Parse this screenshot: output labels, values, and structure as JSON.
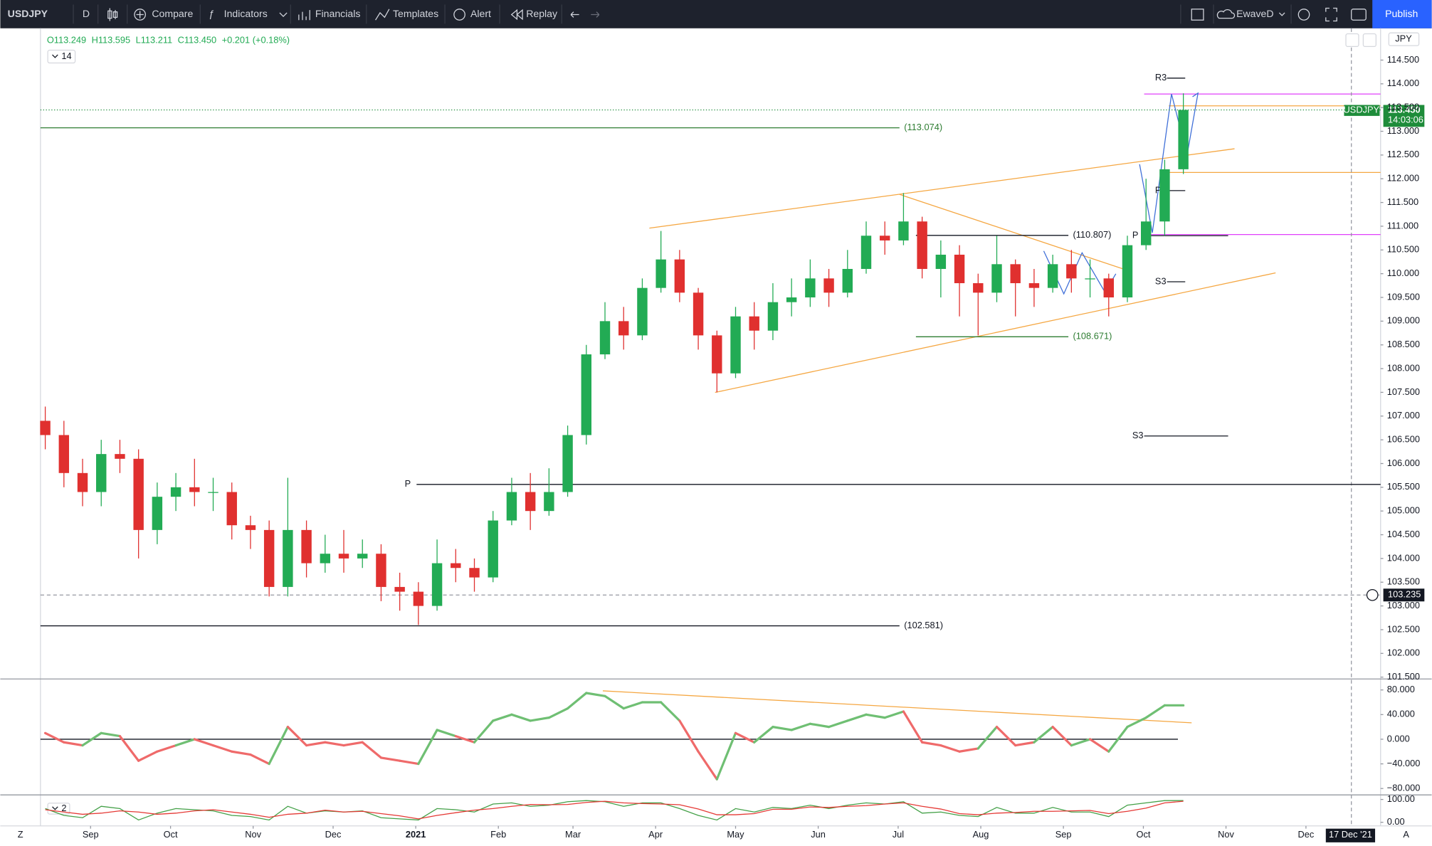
{
  "toolbar": {
    "symbol": "USDJPY",
    "interval": "D",
    "items": [
      "Compare",
      "Indicators",
      "Financials",
      "Templates",
      "Alert",
      "Replay"
    ],
    "layout_name": "EwaveD",
    "publish": "Publish"
  },
  "legend": {
    "ohlc": [
      "O113.249",
      "H113.595",
      "L113.211",
      "C113.450",
      "+0.201 (+0.18%)"
    ],
    "indicator_param": "14",
    "stoch_param": "2"
  },
  "price_tags": {
    "symbol": "USDJPY",
    "price": "113.450",
    "countdown": "14:03:06",
    "crosshair": "103.235",
    "currency": "JPY",
    "date": "17 Dec '21"
  },
  "axis_buttons": [
    "Z",
    "A"
  ],
  "chart_data": [
    {
      "type": "candlestick",
      "up_color": "#22ab54",
      "down_color": "#e0302f",
      "x": [
        14,
        21,
        28,
        35,
        42,
        49,
        56,
        63,
        70,
        77,
        84,
        91,
        98,
        105,
        112,
        119,
        126,
        133,
        140,
        147,
        154,
        161,
        168,
        175,
        182,
        189,
        196,
        203,
        210,
        217,
        224,
        231,
        238,
        245,
        252,
        259,
        266,
        273,
        280,
        287,
        294,
        301,
        308,
        315,
        322,
        329,
        336,
        343,
        350,
        357,
        364,
        371,
        378,
        385,
        392,
        399,
        406,
        413,
        420,
        427,
        434,
        441
      ],
      "open": [
        106.9,
        106.6,
        105.8,
        105.4,
        106.2,
        106.1,
        104.6,
        105.3,
        105.5,
        105.4,
        105.4,
        104.7,
        104.6,
        103.4,
        104.6,
        103.9,
        104.1,
        104.0,
        104.1,
        103.4,
        103.3,
        103.0,
        103.9,
        103.8,
        103.6,
        104.8,
        105.4,
        105.0,
        105.4,
        106.6,
        108.3,
        109.0,
        108.7,
        109.7,
        110.3,
        109.6,
        108.7,
        107.9,
        109.1,
        108.8,
        109.4,
        109.5,
        109.9,
        109.6,
        110.1,
        110.8,
        110.7,
        111.1,
        110.1,
        110.4,
        109.8,
        109.6,
        110.2,
        109.8,
        109.7,
        110.2,
        109.9,
        109.9,
        109.5,
        110.6,
        111.1,
        112.2
      ],
      "high": [
        107.2,
        106.9,
        106.1,
        106.5,
        106.5,
        106.3,
        105.6,
        105.8,
        106.1,
        105.7,
        105.6,
        104.9,
        104.8,
        105.7,
        104.8,
        104.5,
        104.6,
        104.4,
        104.3,
        103.7,
        103.5,
        104.4,
        104.2,
        104.0,
        105.0,
        105.7,
        105.8,
        105.9,
        106.8,
        108.5,
        109.4,
        109.3,
        109.9,
        110.9,
        110.5,
        109.7,
        108.8,
        109.3,
        109.4,
        109.8,
        109.9,
        110.3,
        110.1,
        110.5,
        111.1,
        111.1,
        111.7,
        111.2,
        110.7,
        110.6,
        110.0,
        110.8,
        110.3,
        110.1,
        110.4,
        110.5,
        110.3,
        110.0,
        110.8,
        112.0,
        112.4,
        113.8
      ],
      "low": [
        106.3,
        105.5,
        105.1,
        105.1,
        105.8,
        104.0,
        104.3,
        105.0,
        105.1,
        105.0,
        104.4,
        104.2,
        103.2,
        103.2,
        103.6,
        103.7,
        103.7,
        103.8,
        103.1,
        102.9,
        102.6,
        102.9,
        103.5,
        103.3,
        103.5,
        104.7,
        104.6,
        104.9,
        105.3,
        106.4,
        108.2,
        108.4,
        108.6,
        109.6,
        109.4,
        108.4,
        107.5,
        107.8,
        108.4,
        108.6,
        109.1,
        109.3,
        109.3,
        109.5,
        110.0,
        110.4,
        110.6,
        109.9,
        109.5,
        109.1,
        108.7,
        109.4,
        109.1,
        109.3,
        109.6,
        109.6,
        109.5,
        109.1,
        109.4,
        110.5,
        110.8,
        112.1
      ],
      "close": [
        106.6,
        105.8,
        105.4,
        106.2,
        106.1,
        104.6,
        105.3,
        105.5,
        105.4,
        105.4,
        104.7,
        104.6,
        103.4,
        104.6,
        103.9,
        104.1,
        104.0,
        104.1,
        103.4,
        103.3,
        103.0,
        103.9,
        103.8,
        103.6,
        104.8,
        105.4,
        105.0,
        105.4,
        106.6,
        108.3,
        109.0,
        108.7,
        109.7,
        110.3,
        109.6,
        108.7,
        107.9,
        109.1,
        108.8,
        109.4,
        109.5,
        109.9,
        109.6,
        110.1,
        110.8,
        110.7,
        111.1,
        110.1,
        110.4,
        109.8,
        109.6,
        110.2,
        109.8,
        109.7,
        110.2,
        109.9,
        109.9,
        109.5,
        110.6,
        111.1,
        112.2,
        113.45
      ],
      "xlim": [
        12.2,
        515
      ],
      "xticks": [
        {
          "value": 31,
          "label": "Sep"
        },
        {
          "value": 61,
          "label": "Oct"
        },
        {
          "value": 92,
          "label": "Nov"
        },
        {
          "value": 122,
          "label": "Dec"
        },
        {
          "value": 153,
          "label": "2021"
        },
        {
          "value": 184,
          "label": "Feb"
        },
        {
          "value": 212,
          "label": "Mar"
        },
        {
          "value": 243,
          "label": "Apr"
        },
        {
          "value": 273,
          "label": "May"
        },
        {
          "value": 304,
          "label": "Jun"
        },
        {
          "value": 334,
          "label": "Jul"
        },
        {
          "value": 365,
          "label": "Aug"
        },
        {
          "value": 396,
          "label": "Sep"
        },
        {
          "value": 426,
          "label": "Oct"
        },
        {
          "value": 457,
          "label": "Nov"
        },
        {
          "value": 487,
          "label": "Dec"
        }
      ],
      "ylim": [
        101.48,
        115.17
      ],
      "yticks": [
        {
          "value": 101.5,
          "label": "101.500"
        },
        {
          "value": 102,
          "label": "102.000"
        },
        {
          "value": 102.5,
          "label": "102.500"
        },
        {
          "value": 103,
          "label": "103.000"
        },
        {
          "value": 103.5,
          "label": "103.500"
        },
        {
          "value": 104,
          "label": "104.000"
        },
        {
          "value": 104.5,
          "label": "104.500"
        },
        {
          "value": 105,
          "label": "105.000"
        },
        {
          "value": 105.5,
          "label": "105.500"
        },
        {
          "value": 106,
          "label": "106.000"
        },
        {
          "value": 106.5,
          "label": "106.500"
        },
        {
          "value": 107,
          "label": "107.000"
        },
        {
          "value": 107.5,
          "label": "107.500"
        },
        {
          "value": 108,
          "label": "108.000"
        },
        {
          "value": 108.5,
          "label": "108.500"
        },
        {
          "value": 109,
          "label": "109.000"
        },
        {
          "value": 109.5,
          "label": "109.500"
        },
        {
          "value": 110,
          "label": "110.000"
        },
        {
          "value": 110.5,
          "label": "110.500"
        },
        {
          "value": 111,
          "label": "111.000"
        },
        {
          "value": 111.5,
          "label": "111.500"
        },
        {
          "value": 112,
          "label": "112.000"
        },
        {
          "value": 112.5,
          "label": "112.500"
        },
        {
          "value": 113,
          "label": "113.000"
        },
        {
          "value": 113.5,
          "label": "113.500"
        },
        {
          "value": 114,
          "label": "114.000"
        },
        {
          "value": 114.5,
          "label": "114.500"
        }
      ],
      "levels": [
        {
          "value": 113.074,
          "label": "(113.074)",
          "color": "#2e7d32"
        },
        {
          "value": 110.807,
          "label": "(110.807)",
          "color": "#131722"
        },
        {
          "value": 108.671,
          "label": "(108.671)",
          "color": "#2e7d32"
        },
        {
          "value": 102.581,
          "label": "(102.581)",
          "color": "#131722"
        }
      ],
      "pivots": [
        {
          "value": 114.12,
          "label": "R3"
        },
        {
          "value": 111.75,
          "label": "P"
        },
        {
          "value": 110.8,
          "label": "P"
        },
        {
          "value": 109.83,
          "label": "S3"
        },
        {
          "value": 106.58,
          "label": "S3"
        },
        {
          "value": 105.56,
          "label": "P"
        }
      ]
    },
    {
      "type": "oscillator",
      "up_color": "#6fbf73",
      "down_color": "#ef6a6a",
      "values": [
        10,
        -5,
        -10,
        10,
        5,
        -35,
        -20,
        -10,
        0,
        -10,
        -20,
        -25,
        -40,
        20,
        -10,
        -5,
        -10,
        -5,
        -30,
        -35,
        -40,
        15,
        5,
        -5,
        30,
        40,
        30,
        35,
        50,
        75,
        70,
        50,
        60,
        60,
        30,
        -20,
        -65,
        10,
        -5,
        20,
        15,
        25,
        20,
        30,
        40,
        35,
        45,
        -5,
        -10,
        -20,
        -15,
        20,
        -10,
        -5,
        20,
        -10,
        0,
        -20,
        20,
        35,
        55,
        55
      ],
      "ylim": [
        -88.9,
        96.3
      ],
      "yticks": [
        {
          "value": 80,
          "label": "80.000"
        },
        {
          "value": 40,
          "label": "40.000"
        },
        {
          "value": 0,
          "label": "0.000"
        },
        {
          "value": -40,
          "label": "−40.000"
        },
        {
          "value": -80,
          "label": "−80.000"
        }
      ]
    },
    {
      "type": "stochastic",
      "series": [
        {
          "color": "#43a047",
          "values": [
            60,
            30,
            20,
            70,
            60,
            10,
            40,
            60,
            55,
            50,
            30,
            25,
            10,
            70,
            40,
            50,
            45,
            50,
            20,
            15,
            10,
            60,
            55,
            45,
            80,
            85,
            70,
            75,
            90,
            95,
            90,
            70,
            85,
            85,
            60,
            30,
            10,
            60,
            45,
            65,
            60,
            75,
            60,
            75,
            85,
            80,
            90,
            40,
            45,
            30,
            25,
            65,
            40,
            40,
            65,
            45,
            45,
            25,
            75,
            85,
            95,
            95
          ]
        },
        {
          "color": "#e53935",
          "values": [
            55,
            45,
            35,
            40,
            50,
            45,
            35,
            40,
            50,
            55,
            45,
            35,
            22,
            35,
            40,
            53,
            45,
            48,
            38,
            28,
            15,
            30,
            42,
            53,
            60,
            70,
            78,
            77,
            78,
            87,
            92,
            85,
            82,
            80,
            77,
            58,
            33,
            33,
            38,
            57,
            57,
            67,
            65,
            70,
            73,
            80,
            85,
            70,
            58,
            38,
            33,
            40,
            43,
            48,
            48,
            50,
            52,
            38,
            48,
            62,
            85,
            92
          ]
        }
      ],
      "ylim": [
        -16,
        116
      ],
      "yticks": [
        {
          "value": 100,
          "label": "100.00"
        },
        {
          "value": 0,
          "label": "0.00"
        }
      ]
    }
  ]
}
